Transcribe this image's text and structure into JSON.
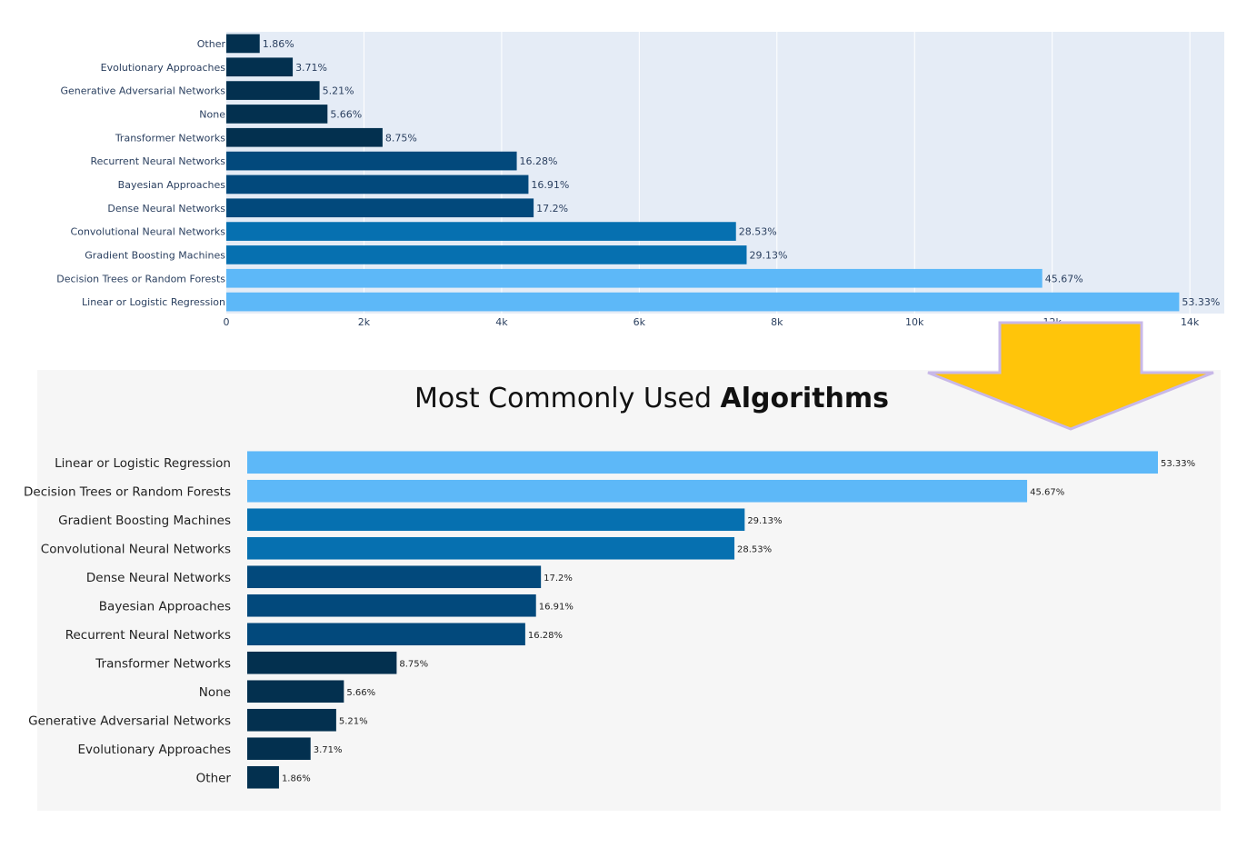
{
  "charts": {
    "top": {
      "chart_data": {
        "type": "bar",
        "orientation": "horizontal",
        "categories": [
          "Other",
          "Evolutionary Approaches",
          "Generative Adversarial Networks",
          "None",
          "Transformer Networks",
          "Recurrent Neural Networks",
          "Bayesian Approaches",
          "Dense Neural Networks",
          "Convolutional Neural Networks",
          "Gradient Boosting Machines",
          "Decision Trees or Random Forests",
          "Linear or Logistic Regression"
        ],
        "values": [
          485,
          965,
          1355,
          1470,
          2270,
          4220,
          4390,
          4465,
          7405,
          7560,
          11855,
          13845
        ],
        "labels": [
          "1.86%",
          "3.71%",
          "5.21%",
          "5.66%",
          "8.75%",
          "16.28%",
          "16.91%",
          "17.2%",
          "28.53%",
          "29.13%",
          "45.67%",
          "53.33%"
        ],
        "colors": [
          "#03304f",
          "#03304f",
          "#03304f",
          "#03304f",
          "#03304f",
          "#02497c",
          "#02497c",
          "#02497c",
          "#0670b0",
          "#0670b0",
          "#5db8f8",
          "#5db8f8"
        ],
        "xlim": [
          0,
          14500
        ],
        "xticks": [
          0,
          2000,
          4000,
          6000,
          8000,
          10000,
          12000,
          14000
        ],
        "xtick_labels": [
          "0",
          "2k",
          "4k",
          "6k",
          "8k",
          "10k",
          "12k",
          "14k"
        ],
        "plot_bg": "#e5ecf6",
        "grid": true
      }
    },
    "bottom": {
      "title_regular": "Most Commonly Used ",
      "title_bold": "Algorithms",
      "chart_data": {
        "type": "bar",
        "orientation": "horizontal",
        "categories": [
          "Linear or Logistic Regression",
          "Decision Trees or Random Forests",
          "Gradient Boosting Machines",
          "Convolutional Neural Networks",
          "Dense Neural Networks",
          "Bayesian Approaches",
          "Recurrent Neural Networks",
          "Transformer Networks",
          "None",
          "Generative Adversarial Networks",
          "Evolutionary Approaches",
          "Other"
        ],
        "values": [
          53.33,
          45.67,
          29.13,
          28.53,
          17.2,
          16.91,
          16.28,
          8.75,
          5.66,
          5.21,
          3.71,
          1.86
        ],
        "labels": [
          "53.33%",
          "45.67%",
          "29.13%",
          "28.53%",
          "17.2%",
          "16.91%",
          "16.28%",
          "8.75%",
          "5.66%",
          "5.21%",
          "3.71%",
          "1.86%"
        ],
        "colors": [
          "#5db8f8",
          "#5db8f8",
          "#0670b0",
          "#0670b0",
          "#02497c",
          "#02497c",
          "#02497c",
          "#03304f",
          "#03304f",
          "#03304f",
          "#03304f",
          "#03304f"
        ],
        "plot_bg": "#f6f6f6",
        "grid": false
      }
    }
  },
  "arrow": {
    "fill": "#ffc50a",
    "stroke": "#c8b8e8"
  }
}
